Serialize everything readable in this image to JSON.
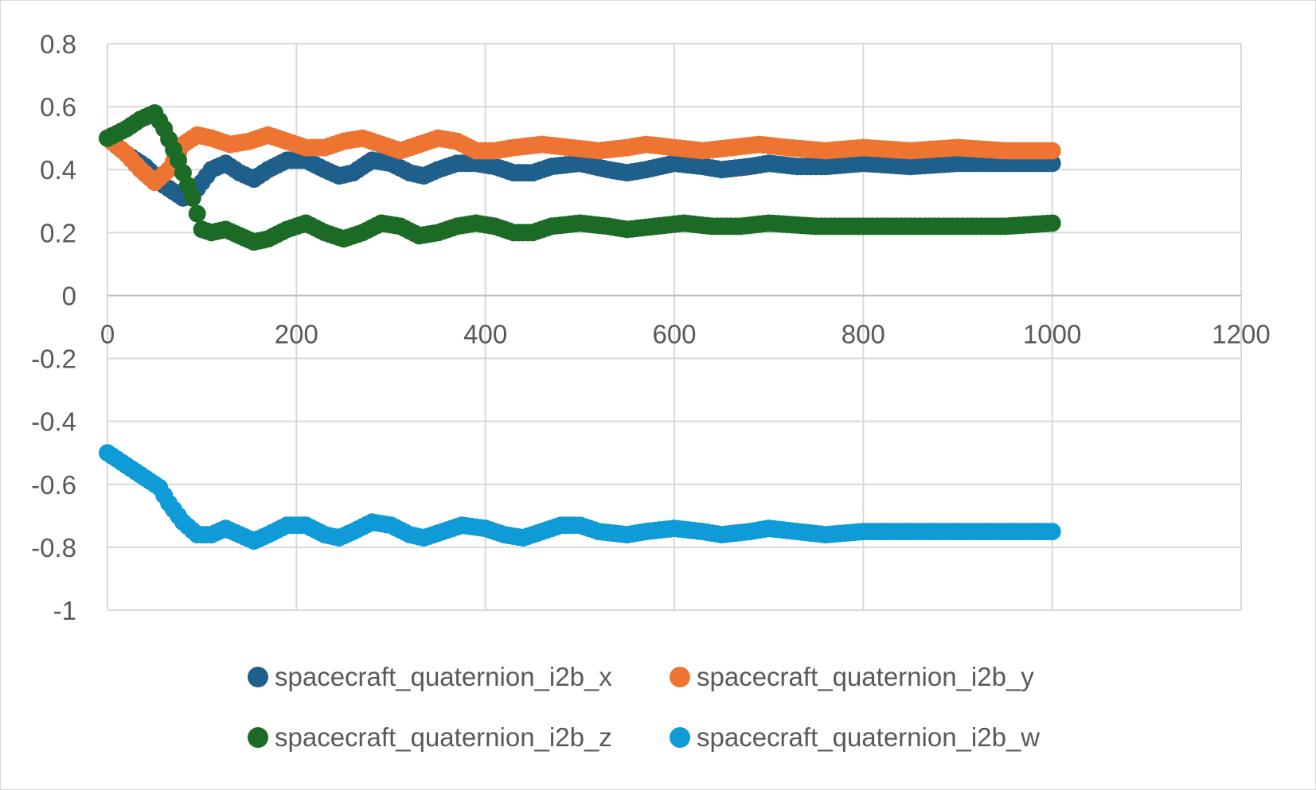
{
  "chart_data": {
    "type": "scatter",
    "title": "",
    "xlabel": "",
    "ylabel": "",
    "xlim": [
      0,
      1200
    ],
    "ylim": [
      -1,
      0.8
    ],
    "x_ticks": [
      "0",
      "200",
      "400",
      "600",
      "800",
      "1000",
      "1200"
    ],
    "y_ticks": [
      "0.8",
      "0.6",
      "0.4",
      "0.2",
      "0",
      "-0.2",
      "-0.4",
      "-0.6",
      "-0.8",
      "-1"
    ],
    "grid": true,
    "legend_position": "bottom",
    "series": [
      {
        "name": "spacecraft_quaternion_i2b_x",
        "color": "#1f5f8b",
        "points": [
          [
            0,
            0.5
          ],
          [
            20,
            0.45
          ],
          [
            40,
            0.41
          ],
          [
            60,
            0.35
          ],
          [
            80,
            0.31
          ],
          [
            95,
            0.34
          ],
          [
            110,
            0.4
          ],
          [
            125,
            0.42
          ],
          [
            140,
            0.39
          ],
          [
            155,
            0.37
          ],
          [
            170,
            0.4
          ],
          [
            190,
            0.43
          ],
          [
            210,
            0.43
          ],
          [
            230,
            0.4
          ],
          [
            245,
            0.38
          ],
          [
            260,
            0.39
          ],
          [
            280,
            0.43
          ],
          [
            300,
            0.42
          ],
          [
            320,
            0.39
          ],
          [
            335,
            0.38
          ],
          [
            350,
            0.4
          ],
          [
            370,
            0.42
          ],
          [
            390,
            0.42
          ],
          [
            410,
            0.41
          ],
          [
            430,
            0.39
          ],
          [
            450,
            0.39
          ],
          [
            470,
            0.41
          ],
          [
            500,
            0.42
          ],
          [
            530,
            0.4
          ],
          [
            550,
            0.39
          ],
          [
            570,
            0.4
          ],
          [
            600,
            0.42
          ],
          [
            630,
            0.41
          ],
          [
            650,
            0.4
          ],
          [
            680,
            0.41
          ],
          [
            700,
            0.42
          ],
          [
            730,
            0.41
          ],
          [
            760,
            0.41
          ],
          [
            800,
            0.42
          ],
          [
            850,
            0.41
          ],
          [
            900,
            0.42
          ],
          [
            950,
            0.42
          ],
          [
            1000,
            0.42
          ]
        ]
      },
      {
        "name": "spacecraft_quaternion_i2b_y",
        "color": "#ed7531",
        "points": [
          [
            0,
            0.5
          ],
          [
            20,
            0.45
          ],
          [
            35,
            0.4
          ],
          [
            50,
            0.36
          ],
          [
            65,
            0.4
          ],
          [
            80,
            0.48
          ],
          [
            95,
            0.51
          ],
          [
            110,
            0.5
          ],
          [
            130,
            0.48
          ],
          [
            150,
            0.49
          ],
          [
            170,
            0.51
          ],
          [
            190,
            0.49
          ],
          [
            210,
            0.47
          ],
          [
            230,
            0.47
          ],
          [
            250,
            0.49
          ],
          [
            270,
            0.5
          ],
          [
            290,
            0.48
          ],
          [
            310,
            0.46
          ],
          [
            330,
            0.48
          ],
          [
            350,
            0.5
          ],
          [
            370,
            0.49
          ],
          [
            390,
            0.46
          ],
          [
            410,
            0.46
          ],
          [
            430,
            0.47
          ],
          [
            460,
            0.48
          ],
          [
            490,
            0.47
          ],
          [
            520,
            0.46
          ],
          [
            550,
            0.47
          ],
          [
            570,
            0.48
          ],
          [
            600,
            0.47
          ],
          [
            630,
            0.46
          ],
          [
            660,
            0.47
          ],
          [
            690,
            0.48
          ],
          [
            720,
            0.47
          ],
          [
            760,
            0.46
          ],
          [
            800,
            0.47
          ],
          [
            850,
            0.46
          ],
          [
            900,
            0.47
          ],
          [
            950,
            0.46
          ],
          [
            1000,
            0.46
          ]
        ]
      },
      {
        "name": "spacecraft_quaternion_i2b_z",
        "color": "#1b6b27",
        "points": [
          [
            0,
            0.5
          ],
          [
            20,
            0.53
          ],
          [
            35,
            0.56
          ],
          [
            50,
            0.58
          ],
          [
            60,
            0.53
          ],
          [
            75,
            0.43
          ],
          [
            90,
            0.31
          ],
          [
            100,
            0.21
          ],
          [
            110,
            0.2
          ],
          [
            125,
            0.21
          ],
          [
            140,
            0.19
          ],
          [
            155,
            0.17
          ],
          [
            170,
            0.18
          ],
          [
            190,
            0.21
          ],
          [
            210,
            0.23
          ],
          [
            230,
            0.2
          ],
          [
            250,
            0.18
          ],
          [
            270,
            0.2
          ],
          [
            290,
            0.23
          ],
          [
            310,
            0.22
          ],
          [
            330,
            0.19
          ],
          [
            350,
            0.2
          ],
          [
            370,
            0.22
          ],
          [
            390,
            0.23
          ],
          [
            410,
            0.22
          ],
          [
            430,
            0.2
          ],
          [
            450,
            0.2
          ],
          [
            470,
            0.22
          ],
          [
            500,
            0.23
          ],
          [
            530,
            0.22
          ],
          [
            550,
            0.21
          ],
          [
            580,
            0.22
          ],
          [
            610,
            0.23
          ],
          [
            640,
            0.22
          ],
          [
            670,
            0.22
          ],
          [
            700,
            0.23
          ],
          [
            750,
            0.22
          ],
          [
            800,
            0.22
          ],
          [
            850,
            0.22
          ],
          [
            900,
            0.22
          ],
          [
            950,
            0.22
          ],
          [
            1000,
            0.23
          ]
        ]
      },
      {
        "name": "spacecraft_quaternion_i2b_w",
        "color": "#0f9bd7",
        "points": [
          [
            0,
            -0.5
          ],
          [
            20,
            -0.54
          ],
          [
            40,
            -0.58
          ],
          [
            55,
            -0.61
          ],
          [
            65,
            -0.66
          ],
          [
            80,
            -0.72
          ],
          [
            95,
            -0.76
          ],
          [
            110,
            -0.76
          ],
          [
            125,
            -0.74
          ],
          [
            140,
            -0.76
          ],
          [
            155,
            -0.78
          ],
          [
            170,
            -0.76
          ],
          [
            190,
            -0.73
          ],
          [
            210,
            -0.73
          ],
          [
            230,
            -0.76
          ],
          [
            245,
            -0.77
          ],
          [
            260,
            -0.75
          ],
          [
            280,
            -0.72
          ],
          [
            300,
            -0.73
          ],
          [
            320,
            -0.76
          ],
          [
            335,
            -0.77
          ],
          [
            355,
            -0.75
          ],
          [
            375,
            -0.73
          ],
          [
            400,
            -0.74
          ],
          [
            420,
            -0.76
          ],
          [
            440,
            -0.77
          ],
          [
            460,
            -0.75
          ],
          [
            480,
            -0.73
          ],
          [
            500,
            -0.73
          ],
          [
            520,
            -0.75
          ],
          [
            550,
            -0.76
          ],
          [
            570,
            -0.75
          ],
          [
            600,
            -0.74
          ],
          [
            630,
            -0.75
          ],
          [
            650,
            -0.76
          ],
          [
            680,
            -0.75
          ],
          [
            700,
            -0.74
          ],
          [
            730,
            -0.75
          ],
          [
            760,
            -0.76
          ],
          [
            800,
            -0.75
          ],
          [
            850,
            -0.75
          ],
          [
            900,
            -0.75
          ],
          [
            950,
            -0.75
          ],
          [
            1000,
            -0.75
          ]
        ]
      }
    ]
  }
}
